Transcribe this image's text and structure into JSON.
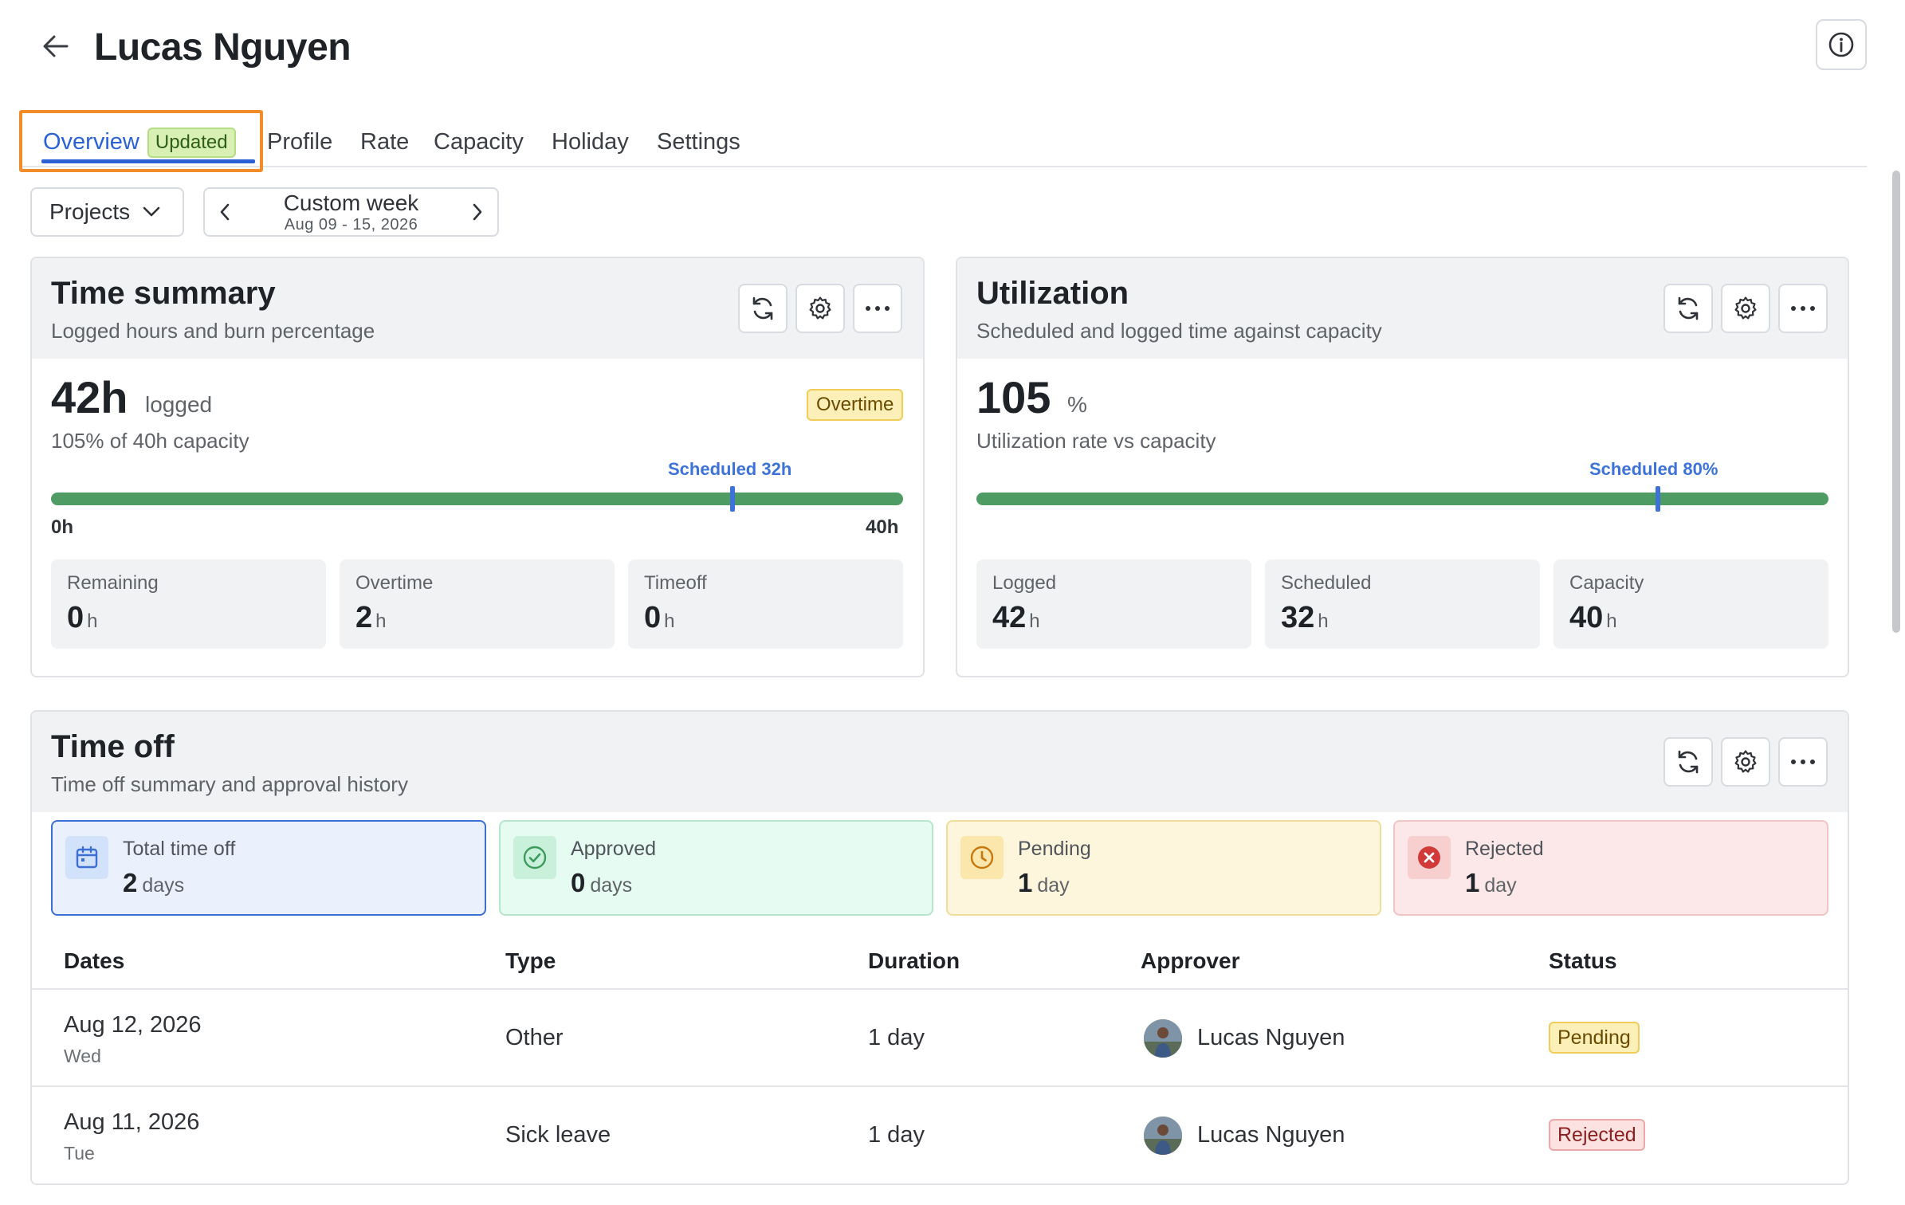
{
  "header": {
    "title": "Lucas Nguyen"
  },
  "tabs": [
    {
      "label": "Overview",
      "badge": "Updated"
    },
    {
      "label": "Profile"
    },
    {
      "label": "Rate"
    },
    {
      "label": "Capacity"
    },
    {
      "label": "Holiday"
    },
    {
      "label": "Settings"
    }
  ],
  "toolbar": {
    "group_by": "Projects",
    "week_title": "Custom week",
    "week_range": "Aug 09 - 15, 2026"
  },
  "time_summary": {
    "title": "Time summary",
    "subtitle": "Logged hours and burn percentage",
    "value": "42h",
    "value_unit": "logged",
    "detail": "105% of 40h capacity",
    "badge": "Overtime",
    "scheduled_label": "Scheduled 32h",
    "scheduled_fraction": 0.8,
    "logged_fraction": 1.0,
    "bar_min": "0h",
    "bar_max": "40h",
    "stats": [
      {
        "label": "Remaining",
        "value": "0",
        "unit": "h"
      },
      {
        "label": "Overtime",
        "value": "2",
        "unit": "h"
      },
      {
        "label": "Timeoff",
        "value": "0",
        "unit": "h"
      }
    ]
  },
  "utilization": {
    "title": "Utilization",
    "subtitle": "Scheduled and logged time against capacity",
    "value": "105",
    "value_unit": "%",
    "detail": "Utilization rate vs capacity",
    "scheduled_label": "Scheduled 80%",
    "scheduled_fraction": 0.8,
    "logged_fraction": 1.0,
    "stats": [
      {
        "label": "Logged",
        "value": "42",
        "unit": "h"
      },
      {
        "label": "Scheduled",
        "value": "32",
        "unit": "h"
      },
      {
        "label": "Capacity",
        "value": "40",
        "unit": "h"
      }
    ]
  },
  "time_off": {
    "title": "Time off",
    "subtitle": "Time off summary and approval history",
    "summary": [
      {
        "label": "Total time off",
        "value": "2",
        "unit": "days",
        "icon": "calendar-icon",
        "bg": "#eaf1fd",
        "border": "#3b6fd4",
        "icon_bg": "#d3e2fb",
        "icon_color": "#3b6fd4"
      },
      {
        "label": "Approved",
        "value": "0",
        "unit": "days",
        "icon": "check-circle-icon",
        "bg": "#e6fbf1",
        "border": "#b6e6cb",
        "icon_bg": "#c9f0da",
        "icon_color": "#3c9a5b"
      },
      {
        "label": "Pending",
        "value": "1",
        "unit": "day",
        "icon": "clock-icon",
        "bg": "#fdf5dc",
        "border": "#f0dd9c",
        "icon_bg": "#fbe6ac",
        "icon_color": "#c7780f"
      },
      {
        "label": "Rejected",
        "value": "1",
        "unit": "day",
        "icon": "x-circle-icon",
        "bg": "#fce8e8",
        "border": "#f2c4c4",
        "icon_bg": "#f7cfcf",
        "icon_color": "#d23a3a"
      }
    ],
    "columns": [
      "Dates",
      "Type",
      "Duration",
      "Approver",
      "Status"
    ],
    "rows": [
      {
        "date": "Aug 12, 2026",
        "weekday": "Wed",
        "type": "Other",
        "duration": "1 day",
        "approver": "Lucas Nguyen",
        "status": "Pending"
      },
      {
        "date": "Aug 11, 2026",
        "weekday": "Tue",
        "type": "Sick leave",
        "duration": "1 day",
        "approver": "Lucas Nguyen",
        "status": "Rejected"
      }
    ]
  },
  "colors": {
    "accent": "#2a62d6",
    "progress": "#4e9c64",
    "highlight": "#f28c28",
    "pending_bg": "#fdefb8",
    "rejected_bg": "#fde2e2"
  }
}
